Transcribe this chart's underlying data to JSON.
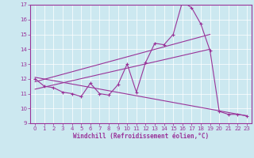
{
  "xlabel": "Windchill (Refroidissement éolien,°C)",
  "xlim": [
    -0.5,
    23.5
  ],
  "ylim": [
    9,
    17
  ],
  "yticks": [
    9,
    10,
    11,
    12,
    13,
    14,
    15,
    16,
    17
  ],
  "xticks": [
    0,
    1,
    2,
    3,
    4,
    5,
    6,
    7,
    8,
    9,
    10,
    11,
    12,
    13,
    14,
    15,
    16,
    17,
    18,
    19,
    20,
    21,
    22,
    23
  ],
  "bg_color": "#cce8f0",
  "line_color": "#993399",
  "main_series_x": [
    0,
    1,
    2,
    3,
    4,
    5,
    6,
    7,
    8,
    9,
    10,
    11,
    12,
    13,
    14,
    15,
    16,
    17,
    18,
    19,
    20,
    21,
    22,
    23
  ],
  "main_series_y": [
    12.0,
    11.5,
    11.4,
    11.1,
    11.0,
    10.8,
    11.7,
    11.0,
    10.9,
    11.6,
    13.0,
    11.1,
    13.1,
    14.4,
    14.3,
    15.0,
    17.2,
    16.8,
    15.7,
    13.9,
    9.8,
    9.6,
    9.6,
    9.5
  ],
  "trend1_x": [
    0,
    19
  ],
  "trend1_y": [
    11.8,
    15.0
  ],
  "trend2_x": [
    0,
    19
  ],
  "trend2_y": [
    11.3,
    14.0
  ],
  "trend3_x": [
    0,
    23
  ],
  "trend3_y": [
    12.1,
    9.5
  ],
  "xlabel_fontsize": 5.5,
  "tick_fontsize": 5.0,
  "linewidth": 0.8,
  "markersize": 3.5
}
